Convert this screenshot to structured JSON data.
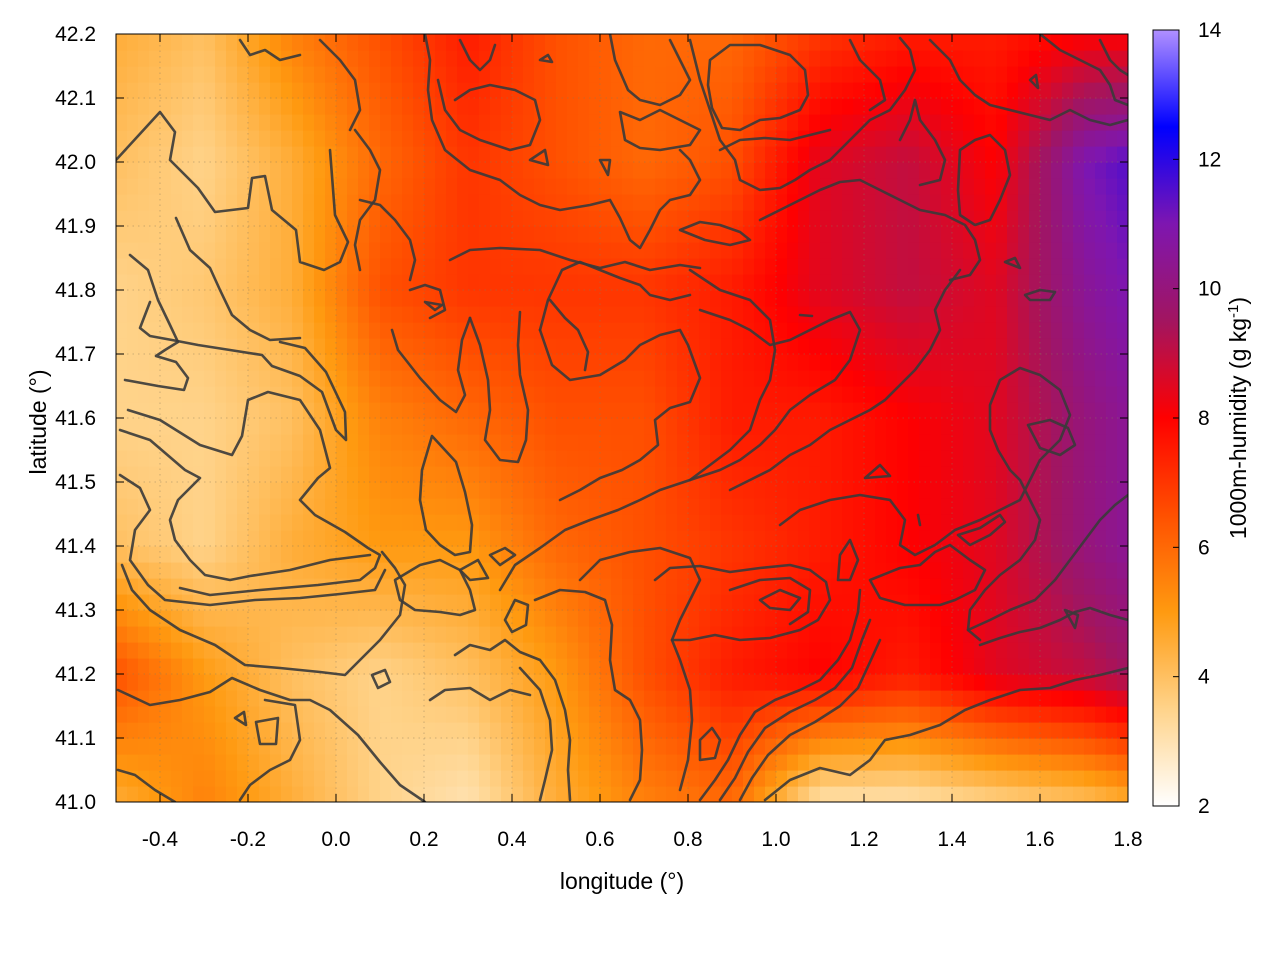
{
  "chart_data": {
    "type": "heatmap",
    "title": "",
    "xlabel": "longitude (°)",
    "ylabel": "latitude (°)",
    "colorbar_label": "1000m-humidity (g kg",
    "colorbar_label_sup": "-1",
    "colorbar_label_end": ")",
    "xlim": [
      -0.5,
      1.8
    ],
    "ylim": [
      41.0,
      42.2
    ],
    "clim": [
      2,
      14
    ],
    "x_ticks": [
      "-0.4",
      "-0.2",
      "0.0",
      "0.2",
      "0.4",
      "0.6",
      "0.8",
      "1.0",
      "1.2",
      "1.4",
      "1.6",
      "1.8"
    ],
    "x_tick_values": [
      -0.4,
      -0.2,
      0.0,
      0.2,
      0.4,
      0.6,
      0.8,
      1.0,
      1.2,
      1.4,
      1.6,
      1.8
    ],
    "y_ticks": [
      "41.0",
      "41.1",
      "41.2",
      "41.3",
      "41.4",
      "41.5",
      "41.6",
      "41.7",
      "41.8",
      "41.9",
      "42.0",
      "42.1",
      "42.2"
    ],
    "y_tick_values": [
      41.0,
      41.1,
      41.2,
      41.3,
      41.4,
      41.5,
      41.6,
      41.7,
      41.8,
      41.9,
      42.0,
      42.1,
      42.2
    ],
    "colorbar_ticks": [
      "2",
      "4",
      "6",
      "8",
      "10",
      "12",
      "14"
    ],
    "colorbar_tick_values": [
      2,
      4,
      6,
      8,
      10,
      12,
      14
    ],
    "colormap": [
      "#ffffff",
      "#ffd38a",
      "#ff9a10",
      "#ff5000",
      "#ff0000",
      "#a21560",
      "#7e16b0",
      "#0000ff",
      "#b090ff"
    ],
    "grid": true,
    "contours": true,
    "humidity_field": {
      "x": [
        -0.5,
        -0.3,
        -0.1,
        0.1,
        0.3,
        0.5,
        0.7,
        0.9,
        1.1,
        1.3,
        1.5,
        1.7,
        1.8
      ],
      "y": [
        41.0,
        41.2,
        41.4,
        41.6,
        41.8,
        42.0,
        42.2
      ],
      "values": [
        [
          4.5,
          5.5,
          4.5,
          3.5,
          3.0,
          4.5,
          5.5,
          6.0,
          3.0,
          3.0,
          3.5,
          4.0,
          4.5
        ],
        [
          6.5,
          5.0,
          4.0,
          3.5,
          4.0,
          5.0,
          6.5,
          7.5,
          8.0,
          7.5,
          8.5,
          9.0,
          9.5
        ],
        [
          4.0,
          3.5,
          4.5,
          5.0,
          5.0,
          6.0,
          6.5,
          7.0,
          7.5,
          8.0,
          8.5,
          10.0,
          10.5
        ],
        [
          3.5,
          3.5,
          4.0,
          5.5,
          6.0,
          6.5,
          6.5,
          7.5,
          7.5,
          8.0,
          8.5,
          10.0,
          10.5
        ],
        [
          3.5,
          3.8,
          4.5,
          6.5,
          7.0,
          7.0,
          7.0,
          7.5,
          8.5,
          9.0,
          8.5,
          10.5,
          11.0
        ],
        [
          4.0,
          3.5,
          4.5,
          6.0,
          7.0,
          6.5,
          6.0,
          6.5,
          8.5,
          9.0,
          8.0,
          11.0,
          11.5
        ],
        [
          4.5,
          4.0,
          5.5,
          6.5,
          7.5,
          6.5,
          6.0,
          6.0,
          7.0,
          7.5,
          7.5,
          8.0,
          8.0
        ]
      ]
    }
  }
}
